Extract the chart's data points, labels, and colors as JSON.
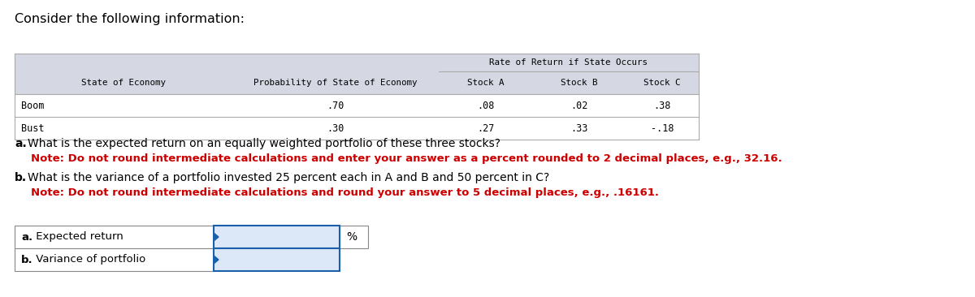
{
  "title": "Consider the following information:",
  "title_fontsize": 11.5,
  "title_color": "#000000",
  "bg_color": "#ffffff",
  "table_header_bg": "#d5d8e3",
  "table_border_color": "#aaaaaa",
  "monospace_font": "DejaVu Sans Mono",
  "sans_font": "DejaVu Sans",
  "col_header_row2": [
    "State of Economy",
    "Probability of State of Economy",
    "Stock A",
    "Stock B",
    "Stock C"
  ],
  "table_data": [
    [
      "Boom",
      ".70",
      ".08",
      ".02",
      ".38"
    ],
    [
      "Bust",
      ".30",
      ".27",
      ".33",
      "-.18"
    ]
  ],
  "question_a_bold": "a.",
  "question_a_rest": " What is the expected return on an equally weighted portfolio of these three stocks?",
  "question_a_note": "Note: Do not round intermediate calculations and enter your answer as a percent rounded to 2 decimal places, e.g., 32.16.",
  "question_b_bold": "b.",
  "question_b_rest": " What is the variance of a portfolio invested 25 percent each in A and B and 50 percent in C?",
  "question_b_note": "Note: Do not round intermediate calculations and round your answer to 5 decimal places, e.g., .16161.",
  "answer_labels_bold": [
    "a.",
    "b."
  ],
  "answer_labels_rest": [
    " Expected return",
    " Variance of portfolio"
  ],
  "answer_suffix": "%",
  "note_color": "#cc0000",
  "question_color": "#000000",
  "answer_box_border": "#1a5faa",
  "answer_box_fill": "#dce8f8"
}
